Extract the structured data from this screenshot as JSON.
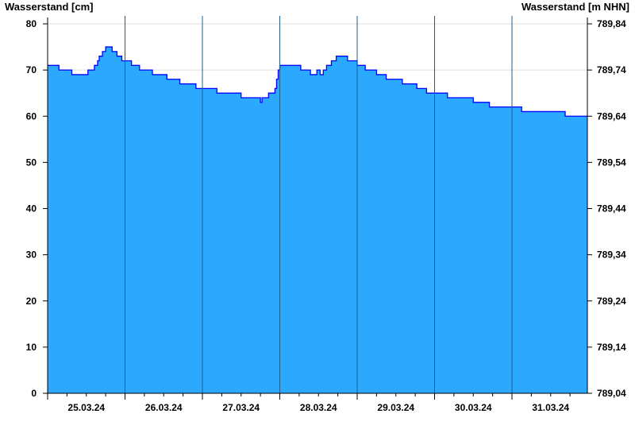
{
  "chart_data": {
    "type": "area",
    "ylabel_left": "Wasserstand [cm]",
    "ylabel_right": "Wasserstand [m NHN]",
    "ylim": [
      0,
      80
    ],
    "yticks": [
      0,
      10,
      20,
      30,
      40,
      50,
      60,
      70,
      80
    ],
    "yticks_right": [
      "789,04",
      "789,14",
      "789,24",
      "789,34",
      "789,44",
      "789,54",
      "789,64",
      "789,74",
      "789,84"
    ],
    "xlim": [
      "2024-03-25T00:00",
      "2024-03-31T23:30"
    ],
    "xtick_labels": [
      "25.03.24",
      "26.03.24",
      "27.03.24",
      "28.03.24",
      "29.03.24",
      "30.03.24",
      "31.03.24"
    ],
    "grid": "horizontal at 10 cm, vertical at day boundaries",
    "colors": {
      "fill": "#2aa9ff",
      "line": "#0000ff",
      "day_line": "#1f5f8f",
      "grid": "#dddddd"
    },
    "step": true,
    "points": [
      [
        "2024-03-25T00:00",
        71
      ],
      [
        "2024-03-25T03:30",
        70
      ],
      [
        "2024-03-25T07:30",
        69
      ],
      [
        "2024-03-25T12:30",
        70
      ],
      [
        "2024-03-25T14:30",
        71
      ],
      [
        "2024-03-25T15:30",
        72
      ],
      [
        "2024-03-25T16:00",
        73
      ],
      [
        "2024-03-25T17:00",
        74
      ],
      [
        "2024-03-25T18:00",
        75
      ],
      [
        "2024-03-25T20:00",
        74
      ],
      [
        "2024-03-25T21:30",
        73
      ],
      [
        "2024-03-25T23:00",
        72
      ],
      [
        "2024-03-26T02:00",
        71
      ],
      [
        "2024-03-26T04:30",
        70
      ],
      [
        "2024-03-26T08:30",
        69
      ],
      [
        "2024-03-26T13:00",
        68
      ],
      [
        "2024-03-26T17:00",
        67
      ],
      [
        "2024-03-26T22:00",
        66
      ],
      [
        "2024-03-27T04:30",
        65
      ],
      [
        "2024-03-27T12:00",
        64
      ],
      [
        "2024-03-27T18:00",
        63
      ],
      [
        "2024-03-27T18:30",
        64
      ],
      [
        "2024-03-27T20:30",
        65
      ],
      [
        "2024-03-27T22:30",
        66
      ],
      [
        "2024-03-27T23:00",
        68
      ],
      [
        "2024-03-27T23:30",
        70
      ],
      [
        "2024-03-28T00:00",
        71
      ],
      [
        "2024-03-28T06:30",
        70
      ],
      [
        "2024-03-28T09:30",
        69
      ],
      [
        "2024-03-28T11:30",
        70
      ],
      [
        "2024-03-28T12:30",
        69
      ],
      [
        "2024-03-28T13:30",
        70
      ],
      [
        "2024-03-28T14:30",
        71
      ],
      [
        "2024-03-28T16:00",
        72
      ],
      [
        "2024-03-28T17:30",
        73
      ],
      [
        "2024-03-28T21:00",
        72
      ],
      [
        "2024-03-29T00:00",
        71
      ],
      [
        "2024-03-29T02:30",
        70
      ],
      [
        "2024-03-29T06:00",
        69
      ],
      [
        "2024-03-29T09:00",
        68
      ],
      [
        "2024-03-29T14:00",
        67
      ],
      [
        "2024-03-29T18:30",
        66
      ],
      [
        "2024-03-29T21:30",
        65
      ],
      [
        "2024-03-30T04:00",
        64
      ],
      [
        "2024-03-30T12:00",
        63
      ],
      [
        "2024-03-30T17:00",
        62
      ],
      [
        "2024-03-31T03:00",
        61
      ],
      [
        "2024-03-31T16:30",
        60
      ],
      [
        "2024-03-31T23:30",
        60
      ]
    ]
  }
}
